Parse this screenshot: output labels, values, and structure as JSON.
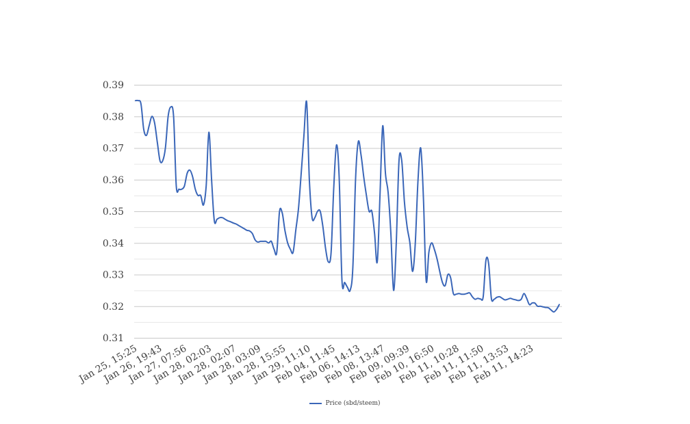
{
  "colors": {
    "series": "#3a66b8",
    "grid_major": "#c8c8c8",
    "grid_minor": "#e6e6e6",
    "text": "#404040"
  },
  "chart_data": {
    "type": "line",
    "title": "",
    "xlabel": "",
    "ylabel": "",
    "ylim": [
      0.31,
      0.39
    ],
    "y_ticks": [
      "0.39",
      "0.38",
      "0.37",
      "0.36",
      "0.35",
      "0.34",
      "0.33",
      "0.32",
      "0.31"
    ],
    "grid": true,
    "legend_position": "bottom",
    "x_tick_labels": [
      "Jan 25, 15:25",
      "Jan 26, 19:43",
      "Jan 27, 07:56",
      "Jan 28, 02:03",
      "Jan 28, 02:07",
      "Jan 28, 03:09",
      "Jan 28, 15:55",
      "Jan 29, 11:10",
      "Feb 04, 11:45",
      "Feb 06, 14:13",
      "Feb 08, 13:47",
      "Feb 09, 09:39",
      "Feb 10, 16:50",
      "Feb 11, 10:28",
      "Feb 11, 11:50",
      "Feb 11, 13:53",
      "Feb 11, 14:23"
    ],
    "series": [
      {
        "name": "Price (sbd/steem)",
        "values": [
          0.385,
          0.385,
          0.384,
          0.376,
          0.374,
          0.377,
          0.38,
          0.378,
          0.372,
          0.366,
          0.366,
          0.37,
          0.38,
          0.383,
          0.38,
          0.358,
          0.357,
          0.357,
          0.358,
          0.362,
          0.363,
          0.361,
          0.357,
          0.355,
          0.355,
          0.352,
          0.358,
          0.375,
          0.36,
          0.347,
          0.3475,
          0.348,
          0.348,
          0.3475,
          0.347,
          0.3467,
          0.3463,
          0.346,
          0.3455,
          0.345,
          0.3445,
          0.344,
          0.3438,
          0.343,
          0.341,
          0.3403,
          0.3405,
          0.3405,
          0.3405,
          0.34,
          0.3405,
          0.338,
          0.337,
          0.3499,
          0.3495,
          0.344,
          0.34,
          0.338,
          0.337,
          0.344,
          0.351,
          0.362,
          0.374,
          0.3845,
          0.36,
          0.348,
          0.348,
          0.35,
          0.35,
          0.345,
          0.338,
          0.334,
          0.337,
          0.358,
          0.371,
          0.36,
          0.328,
          0.3275,
          0.326,
          0.325,
          0.332,
          0.36,
          0.372,
          0.368,
          0.361,
          0.355,
          0.35,
          0.35,
          0.343,
          0.334,
          0.355,
          0.377,
          0.362,
          0.356,
          0.343,
          0.325,
          0.34,
          0.366,
          0.366,
          0.353,
          0.345,
          0.34,
          0.331,
          0.34,
          0.36,
          0.37,
          0.354,
          0.328,
          0.337,
          0.34,
          0.338,
          0.335,
          0.331,
          0.3275,
          0.3265,
          0.33,
          0.329,
          0.324,
          0.3238,
          0.324,
          0.3238,
          0.3238,
          0.324,
          0.3242,
          0.323,
          0.3222,
          0.3225,
          0.3223,
          0.323,
          0.3345,
          0.3335,
          0.3225,
          0.3222,
          0.3228,
          0.323,
          0.3225,
          0.322,
          0.3222,
          0.3225,
          0.3222,
          0.322,
          0.3218,
          0.3222,
          0.324,
          0.3225,
          0.3205,
          0.321,
          0.321,
          0.32,
          0.32,
          0.3198,
          0.3196,
          0.3195,
          0.3188,
          0.3182,
          0.319,
          0.3205
        ]
      }
    ]
  }
}
